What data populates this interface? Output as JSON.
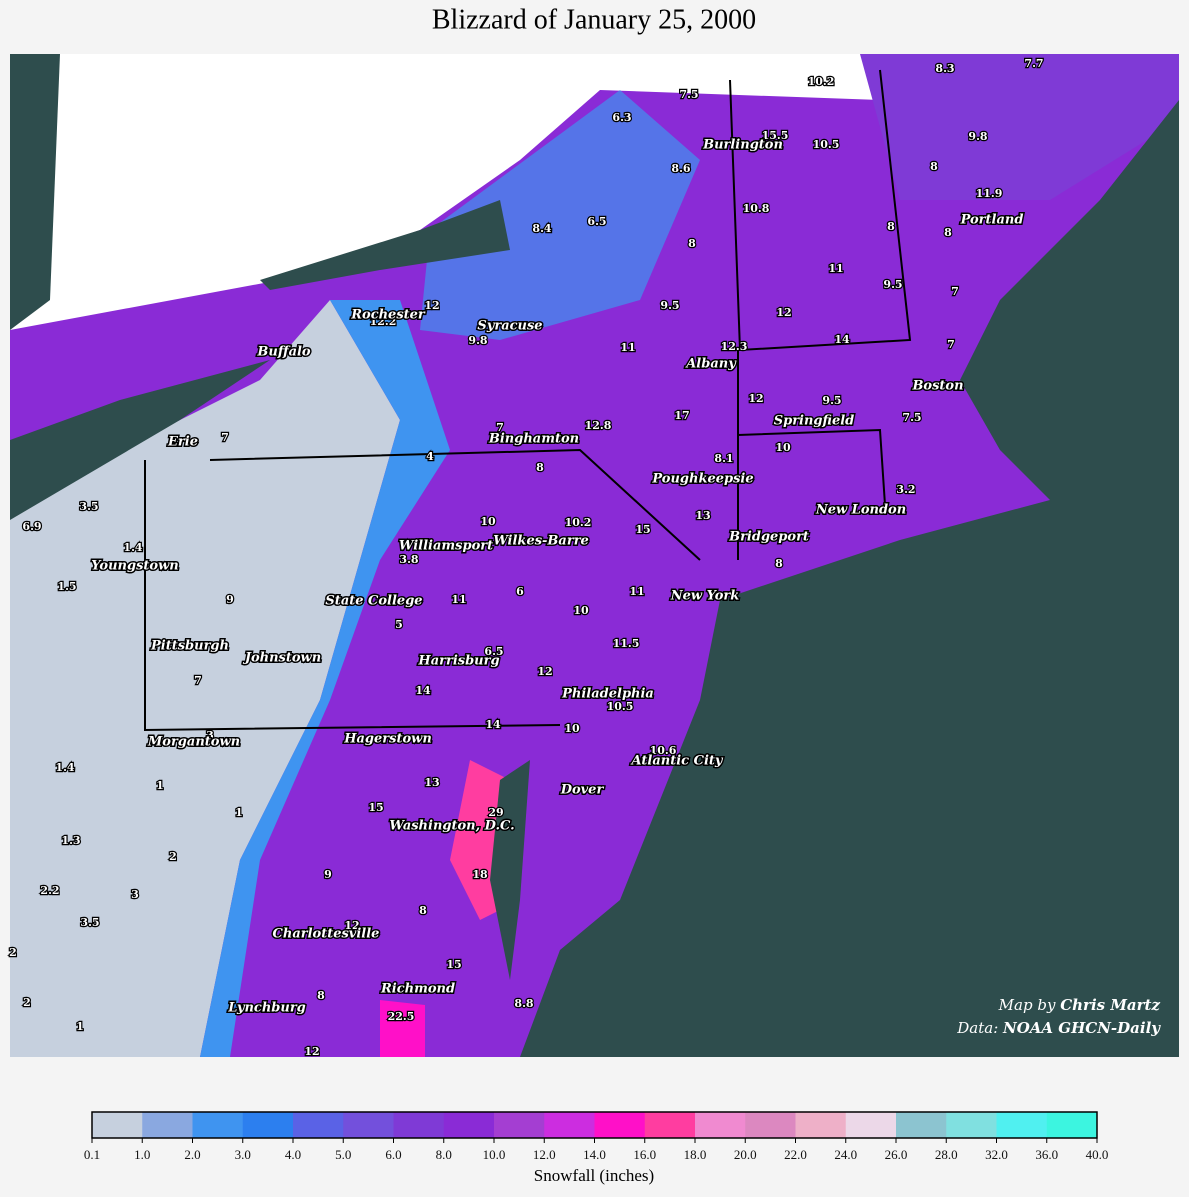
{
  "header": {
    "title": "Blizzard of January 25, 2000"
  },
  "map": {
    "cities": [
      "Burlington",
      "Portland",
      "Rochester",
      "Syracuse",
      "Buffalo",
      "Albany",
      "Boston",
      "Springfield",
      "Erie",
      "Binghamton",
      "Poughkeepsie",
      "New London",
      "Bridgeport",
      "Williamsport",
      "Wilkes-Barre",
      "Youngstown",
      "New York",
      "State College",
      "Pittsburgh",
      "Johnstown",
      "Harrisburg",
      "Philadelphia",
      "Hagerstown",
      "Morgantown",
      "Atlantic City",
      "Dover",
      "Washington, D.C.",
      "Charlottesville",
      "Richmond",
      "Lynchburg"
    ],
    "snowfall": [
      8.3,
      7.7,
      10.2,
      7.5,
      6.3,
      15.5,
      10.5,
      9.8,
      8.6,
      8,
      11.9,
      10.8,
      8.4,
      6.5,
      8,
      8,
      8,
      11,
      9.5,
      7,
      12,
      12.2,
      9.8,
      9.5,
      12,
      14,
      11,
      12.3,
      7,
      12,
      9.5,
      7.5,
      17,
      12.8,
      7,
      7,
      4,
      10,
      8.1,
      8,
      3.2,
      3.5,
      6.9,
      10,
      10.2,
      13,
      15,
      1.4,
      3.8,
      8,
      1.5,
      9,
      6,
      11,
      11,
      10,
      5,
      11.5,
      6.5,
      12,
      7,
      14,
      10.5,
      14,
      10,
      3,
      10.6,
      1.4,
      1,
      13,
      15,
      1,
      29,
      1.3,
      2,
      9,
      18,
      2.2,
      3,
      8,
      3.5,
      12,
      2,
      15,
      2,
      8,
      8.8,
      22.5,
      1,
      12
    ],
    "credit": {
      "line1_prefix": "Map by ",
      "line1_name": "Chris Martz",
      "line2_prefix": "Data: ",
      "line2_name": "NOAA GHCN-Daily"
    }
  },
  "colorbar": {
    "label": "Snowfall (inches)",
    "colors": [
      "#c6d0de",
      "#8aa8e0",
      "#3f94f0",
      "#2c7fef",
      "#5a62e6",
      "#7350dc",
      "#7f3ad6",
      "#8a2bd6",
      "#a43ed2",
      "#cc2de0",
      "#ff10c8",
      "#ff3da0",
      "#f08ad0",
      "#dc88c0",
      "#eeb0c8",
      "#ecd8e8",
      "#8cc4d0",
      "#80e0e0",
      "#50f0f0",
      "#3cf5e0"
    ],
    "ticks": [
      0.1,
      {
        "value": 1,
        "label": "1.0"
      },
      {
        "value": 2,
        "label": "2.0"
      },
      {
        "value": 3,
        "label": "3.0"
      },
      {
        "value": 4,
        "label": "4.0"
      },
      {
        "value": 5,
        "label": "5.0"
      },
      {
        "value": 6,
        "label": "6.0"
      },
      {
        "value": 8,
        "label": "8.0"
      },
      {
        "value": 10,
        "label": "10.0"
      },
      {
        "value": 12,
        "label": "12.0"
      },
      {
        "value": 14,
        "label": "14.0"
      },
      {
        "value": 16,
        "label": "16.0"
      },
      {
        "value": 18,
        "label": "18.0"
      },
      {
        "value": 20,
        "label": "20.0"
      },
      {
        "value": 22,
        "label": "22.0"
      },
      {
        "value": 24,
        "label": "24.0"
      },
      {
        "value": 26,
        "label": "26.0"
      },
      {
        "value": 28,
        "label": "28.0"
      },
      {
        "value": 32,
        "label": "32.0"
      },
      {
        "value": 36,
        "label": "36.0"
      },
      {
        "value": 40,
        "label": "40.0"
      }
    ]
  }
}
